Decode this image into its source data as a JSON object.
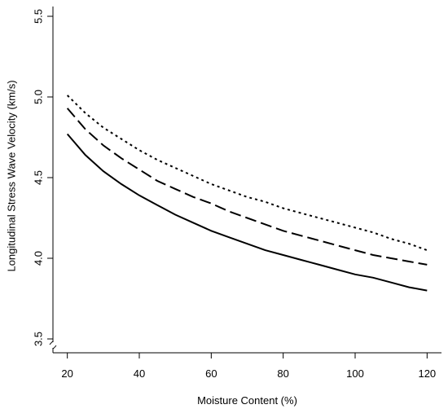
{
  "chart_data": {
    "type": "line",
    "title": "",
    "xlabel": "Moisture Content (%)",
    "ylabel": "Longitudinal Stress Wave Velocity (km/s)",
    "xlim": [
      16,
      124
    ],
    "ylim": [
      3.5,
      5.5
    ],
    "x_ticks": [
      20,
      40,
      60,
      80,
      100,
      120
    ],
    "x_tick_labels": [
      "20",
      "40",
      "60",
      "80",
      "100",
      "120"
    ],
    "y_ticks": [
      3.5,
      4.0,
      4.5,
      5.0,
      5.5
    ],
    "y_tick_labels": [
      "3.5",
      "4.0",
      "4.5",
      "5.0",
      "5.5"
    ],
    "axis_break": "y-axis near bottom",
    "grid": false,
    "legend": "none",
    "series": [
      {
        "line_style": "dotted",
        "color": "#000000",
        "x": [
          20,
          25,
          30,
          35,
          40,
          45,
          50,
          55,
          60,
          65,
          70,
          75,
          80,
          85,
          90,
          95,
          100,
          105,
          110,
          115,
          120
        ],
        "values": [
          5.01,
          4.9,
          4.81,
          4.74,
          4.67,
          4.61,
          4.56,
          4.51,
          4.46,
          4.42,
          4.38,
          4.35,
          4.31,
          4.28,
          4.25,
          4.22,
          4.19,
          4.16,
          4.12,
          4.09,
          4.05
        ]
      },
      {
        "line_style": "dashed",
        "color": "#000000",
        "x": [
          20,
          25,
          30,
          35,
          40,
          45,
          50,
          55,
          60,
          65,
          70,
          75,
          80,
          85,
          90,
          95,
          100,
          105,
          110,
          115,
          120
        ],
        "values": [
          4.93,
          4.8,
          4.7,
          4.62,
          4.55,
          4.48,
          4.43,
          4.38,
          4.34,
          4.29,
          4.25,
          4.21,
          4.17,
          4.14,
          4.11,
          4.08,
          4.05,
          4.02,
          4.0,
          3.98,
          3.96
        ]
      },
      {
        "line_style": "solid",
        "color": "#000000",
        "x": [
          20,
          25,
          30,
          35,
          40,
          45,
          50,
          55,
          60,
          65,
          70,
          75,
          80,
          85,
          90,
          95,
          100,
          105,
          110,
          115,
          120
        ],
        "values": [
          4.77,
          4.64,
          4.54,
          4.46,
          4.39,
          4.33,
          4.27,
          4.22,
          4.17,
          4.13,
          4.09,
          4.05,
          4.02,
          3.99,
          3.96,
          3.93,
          3.9,
          3.88,
          3.85,
          3.82,
          3.8
        ]
      }
    ]
  }
}
